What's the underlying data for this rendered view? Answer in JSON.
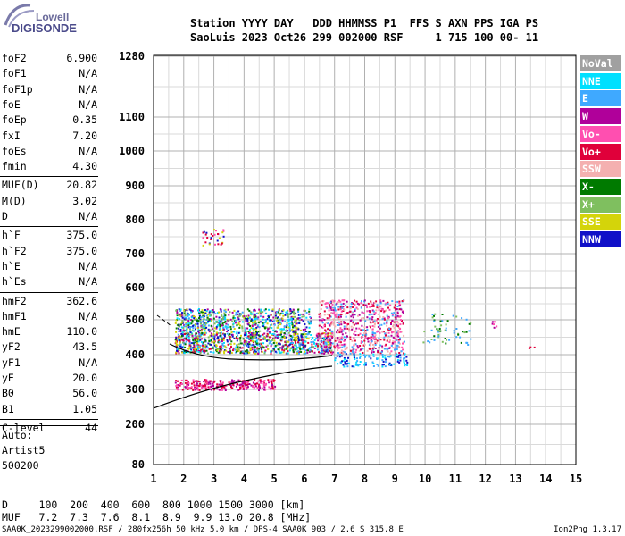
{
  "logo": {
    "line1": "Lowell",
    "line2": "DIGISONDE"
  },
  "header": {
    "row1": "Station YYYY DAY   DDD HHMMSS P1  FFS S AXN PPS IGA PS",
    "row2": "SaoLuis 2023 Oct26 299 002000 RSF     1 715 100 00- 11"
  },
  "params": [
    {
      "k": "foF2",
      "v": "6.900"
    },
    {
      "k": "foF1",
      "v": "N/A"
    },
    {
      "k": "foF1p",
      "v": "N/A"
    },
    {
      "k": "foE",
      "v": "N/A"
    },
    {
      "k": "foEp",
      "v": "0.35"
    },
    {
      "k": "fxI",
      "v": "7.20"
    },
    {
      "k": "foEs",
      "v": "N/A"
    },
    {
      "k": "fmin",
      "v": "4.30"
    },
    {
      "k": "MUF(D)",
      "v": "20.82"
    },
    {
      "k": "M(D)",
      "v": "3.02"
    },
    {
      "k": "D",
      "v": "N/A"
    },
    {
      "k": "h`F",
      "v": "375.0"
    },
    {
      "k": "h`F2",
      "v": "375.0"
    },
    {
      "k": "h`E",
      "v": "N/A"
    },
    {
      "k": "h`Es",
      "v": "N/A"
    },
    {
      "k": "hmF2",
      "v": "362.6"
    },
    {
      "k": "hmF1",
      "v": "N/A"
    },
    {
      "k": "hmE",
      "v": "110.0"
    },
    {
      "k": "yF2",
      "v": "43.5"
    },
    {
      "k": "yF1",
      "v": "N/A"
    },
    {
      "k": "yE",
      "v": "20.0"
    },
    {
      "k": "B0",
      "v": "56.0"
    },
    {
      "k": "B1",
      "v": "1.05"
    },
    {
      "k": "C-level",
      "v": "44"
    }
  ],
  "auto": {
    "line1": "Auto:",
    "line2": "Artist5",
    "line3": "500200"
  },
  "legend": [
    {
      "label": "NoVal",
      "color": "#a0a0a0"
    },
    {
      "label": "NNE",
      "color": "#00e0ff"
    },
    {
      "label": "E",
      "color": "#3fa9ff"
    },
    {
      "label": "W",
      "color": "#b0009a"
    },
    {
      "label": "Vo-",
      "color": "#ff4fb0"
    },
    {
      "label": "Vo+",
      "color": "#e0003a"
    },
    {
      "label": "SSW",
      "color": "#f4b0b0"
    },
    {
      "label": "X-",
      "color": "#007a00"
    },
    {
      "label": "X+",
      "color": "#7fbf5f"
    },
    {
      "label": "SSE",
      "color": "#d4d40a"
    },
    {
      "label": "NNW",
      "color": "#1010c8"
    }
  ],
  "chart_data": {
    "type": "scatter",
    "x_ticks": [
      "1",
      "2",
      "3",
      "4",
      "5",
      "6",
      "7",
      "8",
      "9",
      "10",
      "11",
      "12",
      "13",
      "14",
      "15"
    ],
    "y_ticks": [
      "80",
      "200",
      "300",
      "400",
      "500",
      "600",
      "700",
      "800",
      "900",
      "1000",
      "1100",
      "1280"
    ],
    "xlim": [
      1,
      15
    ],
    "ylim_labels": [
      "80",
      "1280"
    ]
  },
  "footer": {
    "row1": "D     100  200  400  600  800 1000 1500 3000 [km]",
    "row2": "MUF   7.2  7.3  7.6  8.1  8.9  9.9 13.0 20.8 [MHz]",
    "bottom": "SAA0K_2023299002000.RSF / 280fx256h 50 kHz 5.0 km / DPS-4 SAA0K 903 / 2.6 S 315.8 E",
    "version": "Ion2Png 1.3.17"
  }
}
